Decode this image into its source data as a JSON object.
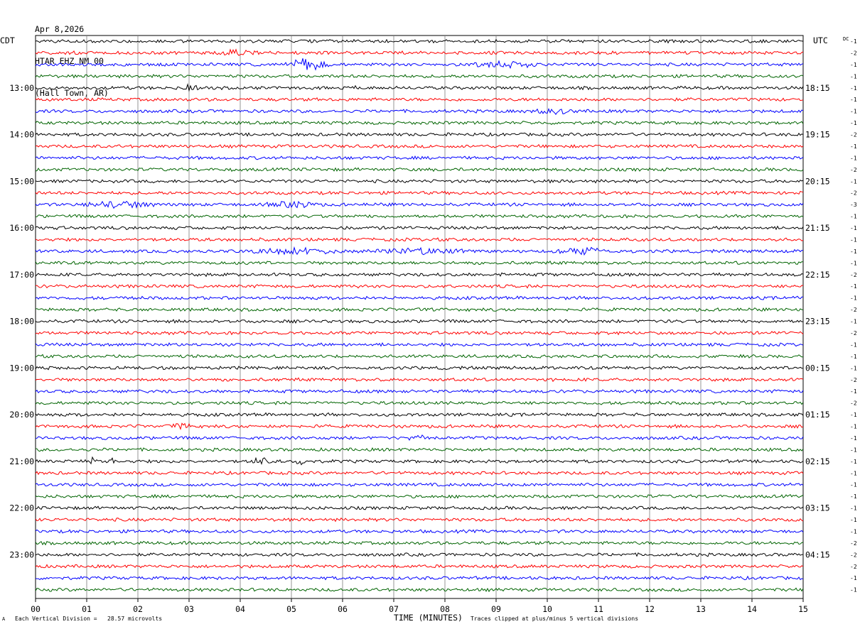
{
  "header": {
    "date": "Apr 8,2026",
    "station": "HTAR EHZ NM 00",
    "location": "(Hall Town, AR)"
  },
  "left_tz": "CDT",
  "right_tz": "UTC",
  "dc_label": "DC",
  "footer": {
    "scale_prefix": "Each Vertical Division =",
    "scale_value": "28.57 microvolts",
    "clip_note": "Traces clipped at plus/minus 5 vertical divisions",
    "corner_mark": "A"
  },
  "chart_data": {
    "type": "line",
    "xlabel": "TIME (MINUTES)",
    "xlim": [
      0,
      15
    ],
    "x_ticks": [
      "00",
      "01",
      "02",
      "03",
      "04",
      "05",
      "06",
      "07",
      "08",
      "09",
      "10",
      "11",
      "12",
      "13",
      "14",
      "15"
    ],
    "trace_count": 48,
    "trace_colors": [
      "#000000",
      "#ff0000",
      "#0000ff",
      "#006400"
    ],
    "left_time_labels": [
      {
        "trace": 4,
        "label": "13:00"
      },
      {
        "trace": 8,
        "label": "14:00"
      },
      {
        "trace": 12,
        "label": "15:00"
      },
      {
        "trace": 16,
        "label": "16:00"
      },
      {
        "trace": 20,
        "label": "17:00"
      },
      {
        "trace": 24,
        "label": "18:00"
      },
      {
        "trace": 28,
        "label": "19:00"
      },
      {
        "trace": 32,
        "label": "20:00"
      },
      {
        "trace": 36,
        "label": "21:00"
      },
      {
        "trace": 40,
        "label": "22:00"
      },
      {
        "trace": 44,
        "label": "23:00"
      }
    ],
    "right_time_labels": [
      {
        "trace": 4,
        "label": "18:15"
      },
      {
        "trace": 8,
        "label": "19:15"
      },
      {
        "trace": 12,
        "label": "20:15"
      },
      {
        "trace": 16,
        "label": "21:15"
      },
      {
        "trace": 20,
        "label": "22:15"
      },
      {
        "trace": 24,
        "label": "23:15"
      },
      {
        "trace": 28,
        "label": "00:15"
      },
      {
        "trace": 32,
        "label": "01:15"
      },
      {
        "trace": 36,
        "label": "02:15"
      },
      {
        "trace": 40,
        "label": "03:15"
      },
      {
        "trace": 44,
        "label": "04:15"
      }
    ],
    "dc_offsets": [
      "-1",
      "-2",
      "-1",
      "-1",
      "-1",
      "-1",
      "-1",
      "-1",
      "-2",
      "-1",
      "-1",
      "-2",
      "-1",
      "-2",
      "-3",
      "-1",
      "-1",
      "-1",
      "-1",
      "-1",
      "-2",
      "-1",
      "-1",
      "-2",
      "-1",
      "-2",
      "-1",
      "-1",
      "-1",
      "-2",
      "-1",
      "-2",
      "-1",
      "-1",
      "-1",
      "-1",
      "-1",
      "-1",
      "-1",
      "-1",
      "-1",
      "-1",
      "-1",
      "-2",
      "-2",
      "-2",
      "-1",
      "-1"
    ],
    "events": [
      {
        "trace": 1,
        "minute": 4.0,
        "amp": 4,
        "width": 0.5
      },
      {
        "trace": 2,
        "minute": 5.3,
        "amp": 9,
        "width": 0.5
      },
      {
        "trace": 2,
        "minute": 9.2,
        "amp": 5,
        "width": 0.8
      },
      {
        "trace": 4,
        "minute": 3.0,
        "amp": 6,
        "width": 0.2
      },
      {
        "trace": 4,
        "minute": 6.2,
        "amp": 4,
        "width": 0.1
      },
      {
        "trace": 6,
        "minute": 10.1,
        "amp": 4,
        "width": 0.5
      },
      {
        "trace": 14,
        "minute": 1.6,
        "amp": 5,
        "width": 0.8
      },
      {
        "trace": 14,
        "minute": 5.0,
        "amp": 4,
        "width": 0.6
      },
      {
        "trace": 18,
        "minute": 5.1,
        "amp": 5,
        "width": 1.0
      },
      {
        "trace": 18,
        "minute": 10.7,
        "amp": 6,
        "width": 0.6
      },
      {
        "trace": 18,
        "minute": 7.5,
        "amp": 4,
        "width": 1.2
      },
      {
        "trace": 33,
        "minute": 2.9,
        "amp": 5,
        "width": 0.3
      },
      {
        "trace": 34,
        "minute": 7.5,
        "amp": 3,
        "width": 0.4
      },
      {
        "trace": 36,
        "minute": 1.1,
        "amp": 5,
        "width": 0.05
      },
      {
        "trace": 36,
        "minute": 1.5,
        "amp": 5,
        "width": 0.05
      },
      {
        "trace": 36,
        "minute": 4.4,
        "amp": 9,
        "width": 0.2
      },
      {
        "trace": 36,
        "minute": 5.2,
        "amp": 4,
        "width": 0.15
      }
    ]
  }
}
